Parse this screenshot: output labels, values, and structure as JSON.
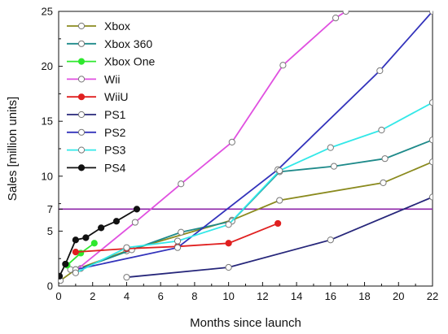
{
  "chart_data": {
    "type": "line",
    "xlabel": "Months since launch",
    "ylabel": "Sales [million units]",
    "xlim": [
      0,
      22
    ],
    "ylim": [
      0,
      25
    ],
    "x_ticks": [
      "0",
      "2",
      "4",
      "6",
      "8",
      "10",
      "12",
      "14",
      "16",
      "18",
      "20",
      "22"
    ],
    "y_ticks": [
      "0",
      "5",
      "7",
      "10",
      "15",
      "20",
      "25"
    ],
    "reference_line": {
      "y": 7,
      "color": "#8e24aa"
    },
    "legend_position": "top-left",
    "series": [
      {
        "name": "Xbox",
        "color": "#8a8a1e",
        "marker": "open",
        "points": [
          [
            0.1,
            0.5
          ],
          [
            1.0,
            1.5
          ],
          [
            4.0,
            3.2
          ],
          [
            10.2,
            6.0
          ],
          [
            13.0,
            7.8
          ],
          [
            19.1,
            9.4
          ],
          [
            22.0,
            11.3
          ]
        ]
      },
      {
        "name": "Xbox 360",
        "color": "#1e8a8a",
        "marker": "open",
        "points": [
          [
            0.7,
            1.5
          ],
          [
            1.3,
            1.6
          ],
          [
            4.3,
            3.3
          ],
          [
            7.2,
            4.9
          ],
          [
            10.2,
            5.9
          ],
          [
            13.0,
            10.4
          ],
          [
            16.2,
            10.9
          ],
          [
            19.2,
            11.6
          ],
          [
            22.0,
            13.3
          ]
        ]
      },
      {
        "name": "Xbox One",
        "color": "#2ee82e",
        "marker": "filled",
        "points": [
          [
            0.5,
            1.9
          ],
          [
            1.3,
            3.0
          ],
          [
            2.1,
            3.9
          ]
        ]
      },
      {
        "name": "Wii",
        "color": "#e050e0",
        "marker": "open",
        "points": [
          [
            1.0,
            1.4
          ],
          [
            4.5,
            5.8
          ],
          [
            7.2,
            9.3
          ],
          [
            10.2,
            13.1
          ],
          [
            13.2,
            20.1
          ],
          [
            16.3,
            24.4
          ],
          [
            16.9,
            25.0
          ]
        ]
      },
      {
        "name": "WiiU",
        "color": "#e02020",
        "marker": "filled",
        "points": [
          [
            1.0,
            3.1
          ],
          [
            4.0,
            3.4
          ],
          [
            7.0,
            3.6
          ],
          [
            10.0,
            3.9
          ],
          [
            12.9,
            5.7
          ]
        ]
      },
      {
        "name": "PS1",
        "color": "#26267a",
        "marker": "open",
        "points": [
          [
            4.0,
            0.8
          ],
          [
            10.0,
            1.7
          ],
          [
            16.0,
            4.2
          ],
          [
            22.0,
            8.1
          ]
        ]
      },
      {
        "name": "PS2",
        "color": "#3333bb",
        "marker": "open",
        "points": [
          [
            1.0,
            1.5
          ],
          [
            7.0,
            3.5
          ],
          [
            12.9,
            10.6
          ],
          [
            18.9,
            19.6
          ],
          [
            22.0,
            25.0
          ]
        ]
      },
      {
        "name": "PS3",
        "color": "#33e8e8",
        "marker": "open",
        "points": [
          [
            1.0,
            1.2
          ],
          [
            4.0,
            3.5
          ],
          [
            7.0,
            4.1
          ],
          [
            10.0,
            5.6
          ],
          [
            13.0,
            10.5
          ],
          [
            16.0,
            12.6
          ],
          [
            19.0,
            14.2
          ],
          [
            22.0,
            16.7
          ]
        ]
      },
      {
        "name": "PS4",
        "color": "#111111",
        "marker": "filled",
        "points": [
          [
            0.05,
            0.9
          ],
          [
            0.4,
            2.0
          ],
          [
            1.0,
            4.2
          ],
          [
            1.6,
            4.4
          ],
          [
            2.5,
            5.3
          ],
          [
            3.4,
            5.9
          ],
          [
            4.6,
            7.0
          ]
        ]
      }
    ]
  }
}
